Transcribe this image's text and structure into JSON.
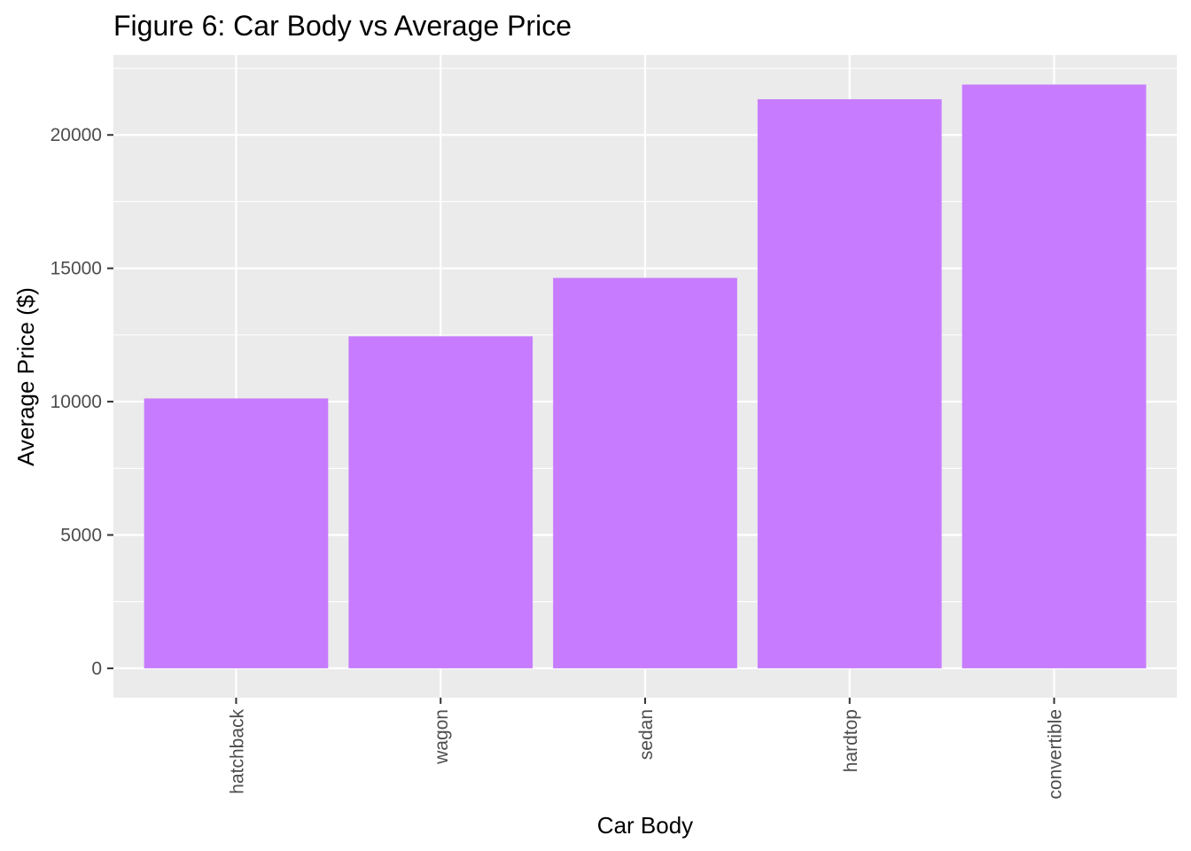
{
  "chart_data": {
    "type": "bar",
    "title": "Figure 6: Car Body vs Average Price",
    "xlabel": "Car Body",
    "ylabel": "Average Price ($)",
    "categories": [
      "hatchback",
      "wagon",
      "sedan",
      "hardtop",
      "convertible"
    ],
    "values": [
      10120,
      12450,
      14640,
      21340,
      21890
    ],
    "ylim": [
      -1100,
      23000
    ],
    "yticks": [
      0,
      5000,
      10000,
      15000,
      20000
    ],
    "ytick_labels": [
      "0",
      "5000",
      "10000",
      "15000",
      "20000"
    ],
    "grid": true,
    "legend": "none",
    "bar_color": "#C77CFF",
    "panel_color": "#EBEBEB",
    "grid_color": "#FFFFFF"
  }
}
